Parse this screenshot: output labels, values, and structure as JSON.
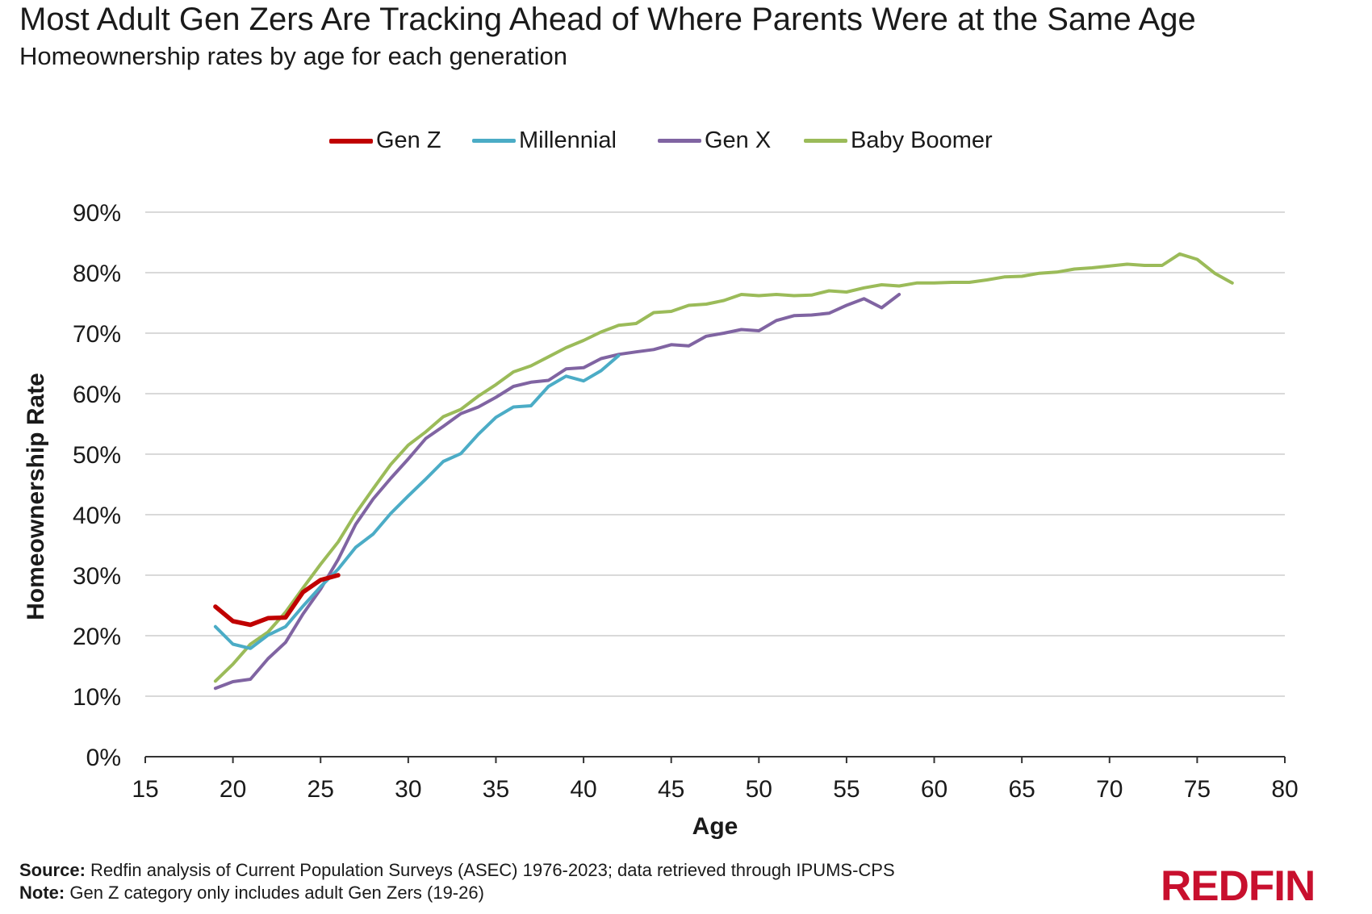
{
  "title": "Most Adult Gen Zers Are Tracking Ahead of Where Parents Were at the Same Age",
  "subtitle": "Homeownership rates by age for each generation",
  "footer": {
    "source_label": "Source:",
    "source_text": "Redfin analysis of Current Population Surveys (ASEC) 1976-2023; data retrieved through IPUMS-CPS",
    "note_label": "Note:",
    "note_text": "Gen Z category only includes adult Gen Zers (19-26)"
  },
  "logo": {
    "text": "REDFIN",
    "color": "#c8102e"
  },
  "chart_data": {
    "type": "line",
    "xlabel": "Age",
    "ylabel": "Homeownership Rate",
    "xlim": [
      15,
      80
    ],
    "ylim": [
      0,
      90
    ],
    "x_ticks": [
      15,
      20,
      25,
      30,
      35,
      40,
      45,
      50,
      55,
      60,
      65,
      70,
      75,
      80
    ],
    "y_ticks": [
      0,
      10,
      20,
      30,
      40,
      50,
      60,
      70,
      80,
      90
    ],
    "y_tick_labels": [
      "0%",
      "10%",
      "20%",
      "30%",
      "40%",
      "50%",
      "60%",
      "70%",
      "80%",
      "90%"
    ],
    "grid": "horizontal",
    "legend_position": "top",
    "series": [
      {
        "name": "Gen Z",
        "color": "#c00000",
        "x": [
          19,
          20,
          21,
          22,
          23,
          24,
          25,
          26
        ],
        "values": [
          24.8,
          22.4,
          21.8,
          22.9,
          23.0,
          27.2,
          29.2,
          30.0
        ]
      },
      {
        "name": "Millennial",
        "color": "#4bacc6",
        "x": [
          19,
          20,
          21,
          22,
          23,
          24,
          25,
          26,
          27,
          28,
          29,
          30,
          31,
          32,
          33,
          34,
          35,
          36,
          37,
          38,
          39,
          40,
          41,
          42
        ],
        "values": [
          21.5,
          18.6,
          17.9,
          20.1,
          21.5,
          24.9,
          28.1,
          31.0,
          34.6,
          36.8,
          40.2,
          43.1,
          45.9,
          48.8,
          50.1,
          53.3,
          56.1,
          57.8,
          58.0,
          61.2,
          62.9,
          62.1,
          63.8,
          66.3
        ]
      },
      {
        "name": "Gen X",
        "color": "#8064a2",
        "x": [
          19,
          20,
          21,
          22,
          23,
          24,
          25,
          26,
          27,
          28,
          29,
          30,
          31,
          32,
          33,
          34,
          35,
          36,
          37,
          38,
          39,
          40,
          41,
          42,
          43,
          44,
          45,
          46,
          47,
          48,
          49,
          50,
          51,
          52,
          53,
          54,
          55,
          56,
          57,
          58
        ],
        "values": [
          11.3,
          12.4,
          12.8,
          16.2,
          18.9,
          23.6,
          27.7,
          32.6,
          38.4,
          42.6,
          46.0,
          49.2,
          52.6,
          54.6,
          56.7,
          57.8,
          59.4,
          61.2,
          61.9,
          62.2,
          64.1,
          64.3,
          65.8,
          66.5,
          66.9,
          67.3,
          68.1,
          67.9,
          69.5,
          70.0,
          70.6,
          70.4,
          72.1,
          72.9,
          73.0,
          73.3,
          74.6,
          75.7,
          74.2,
          76.4
        ]
      },
      {
        "name": "Baby Boomer",
        "color": "#9bbb59",
        "x": [
          19,
          20,
          21,
          22,
          23,
          24,
          25,
          26,
          27,
          28,
          29,
          30,
          31,
          32,
          33,
          34,
          35,
          36,
          37,
          38,
          39,
          40,
          41,
          42,
          43,
          44,
          45,
          46,
          47,
          48,
          49,
          50,
          51,
          52,
          53,
          54,
          55,
          56,
          57,
          58,
          59,
          60,
          61,
          62,
          63,
          64,
          65,
          66,
          67,
          68,
          69,
          70,
          71,
          72,
          73,
          74,
          75,
          76,
          77
        ],
        "values": [
          12.5,
          15.3,
          18.6,
          20.6,
          23.9,
          27.9,
          31.8,
          35.5,
          40.2,
          44.3,
          48.3,
          51.5,
          53.7,
          56.2,
          57.4,
          59.6,
          61.5,
          63.6,
          64.6,
          66.1,
          67.6,
          68.8,
          70.2,
          71.3,
          71.6,
          73.4,
          73.6,
          74.6,
          74.8,
          75.4,
          76.4,
          76.2,
          76.4,
          76.2,
          76.3,
          77.0,
          76.8,
          77.5,
          78.0,
          77.8,
          78.3,
          78.3,
          78.4,
          78.4,
          78.8,
          79.3,
          79.4,
          79.9,
          80.1,
          80.6,
          80.8,
          81.1,
          81.4,
          81.2,
          81.2,
          83.1,
          82.2,
          79.9,
          78.3
        ]
      }
    ]
  }
}
